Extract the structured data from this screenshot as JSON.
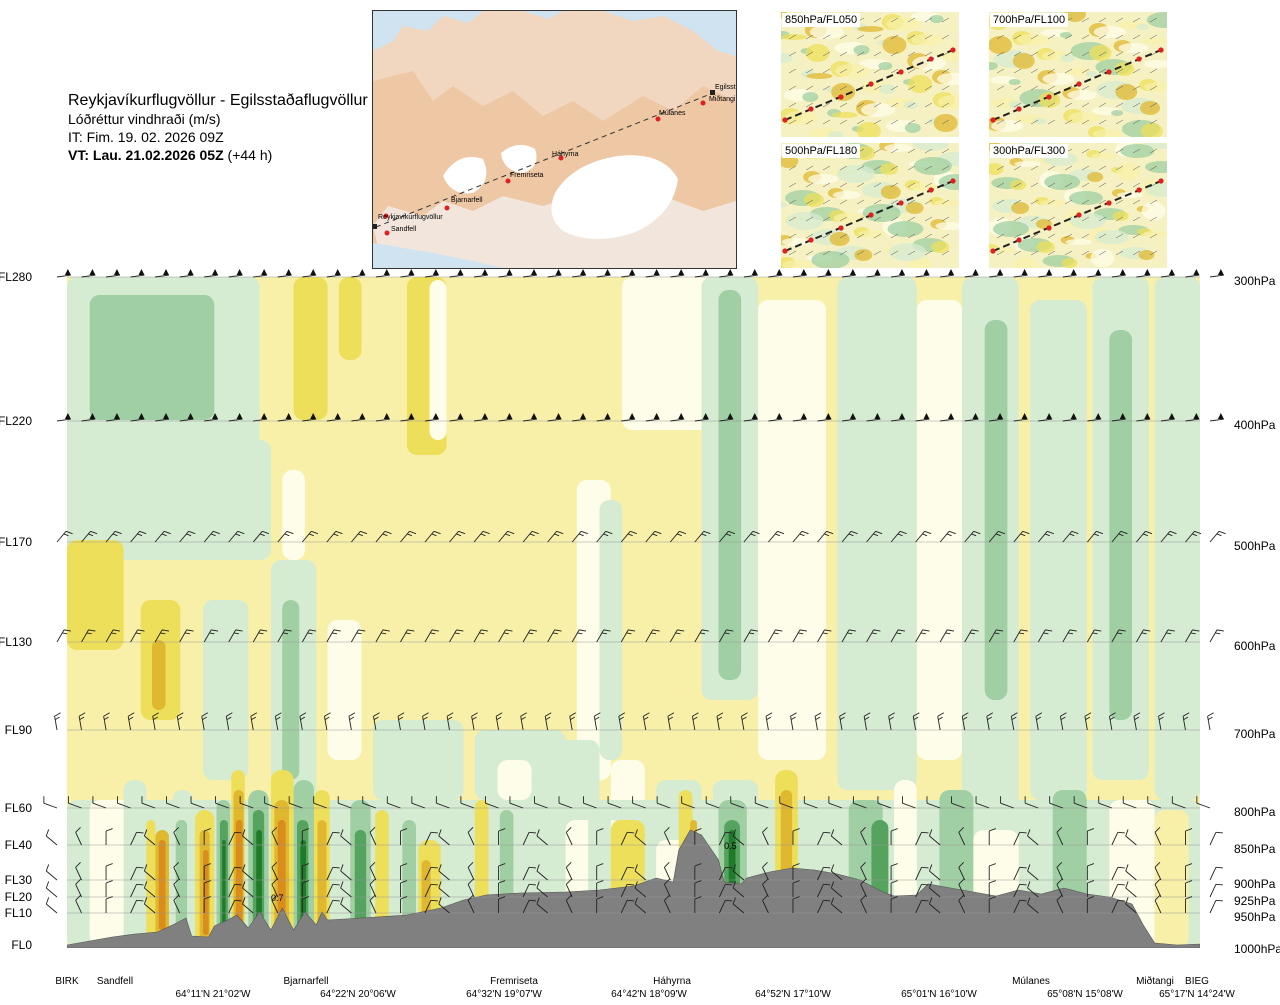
{
  "header": {
    "route": "Reykjavíkurflugvöllur - Egilsstaðaflugvöllur",
    "variable": "Lóðréttur vindhraði (m/s)",
    "issue_time": "IT: Fim. 19. 02. 2026 09Z",
    "valid_time": "VT: Lau. 21.02.2026 05Z",
    "lead_time": "(+44 h)"
  },
  "map": {
    "stations": [
      "Reykjavíkurflugvöllur",
      "Sandfell",
      "Bjarnarfell",
      "Fremriseta",
      "Háhyrna",
      "Múlanes",
      "Egilsst",
      "Miðtangi"
    ]
  },
  "insets": [
    {
      "label": "850hPa/FL050"
    },
    {
      "label": "700hPa/FL100"
    },
    {
      "label": "500hPa/FL180"
    },
    {
      "label": "300hPa/FL300"
    }
  ],
  "chart_data": {
    "type": "heatmap",
    "flight_levels": [
      {
        "fl": "FL280",
        "hpa": "300hPa"
      },
      {
        "fl": "FL220",
        "hpa": "400hPa"
      },
      {
        "fl": "FL170",
        "hpa": "500hPa"
      },
      {
        "fl": "FL130",
        "hpa": "600hPa"
      },
      {
        "fl": "FL90",
        "hpa": "700hPa"
      },
      {
        "fl": "FL60",
        "hpa": "800hPa"
      },
      {
        "fl": "FL40",
        "hpa": "850hPa"
      },
      {
        "fl": "FL30",
        "hpa": "900hPa"
      },
      {
        "fl": "FL20",
        "hpa": "925hPa"
      },
      {
        "fl": "FL10",
        "hpa": "950hPa"
      },
      {
        "fl": "FL0",
        "hpa": "1000hPa"
      }
    ],
    "waypoints": [
      "BIRK",
      "Sandfell",
      "Bjarnarfell",
      "Fremriseta",
      "Háhyrna",
      "Múlanes",
      "Miðtangi",
      "BIEG"
    ],
    "coordinates": [
      "64°11'N 21°02'W",
      "64°22'N 20°06'W",
      "64°32'N 19°07'W",
      "64°42'N 18°09'W",
      "64°52'N 17°10'W",
      "65°01'N 16°10'W",
      "65°08'N 15°08'W",
      "65°17'N 14°24'W"
    ],
    "annotations": [
      {
        "text": "0.7",
        "x_frac": 0.18,
        "fl": 20
      },
      {
        "text": "0.5",
        "x_frac": 0.58,
        "fl": 40
      }
    ],
    "colors": {
      "strong_up": "#1f7a2a",
      "up": "#55a35f",
      "weak_up": "#9fcfa3",
      "faint_up": "#d5ebd2",
      "neutral": "#fefde9",
      "faint_down": "#f8f0a8",
      "weak_down": "#eedf5a",
      "down": "#e0b830",
      "strong_down": "#d98d1c",
      "terrain": "#808080"
    }
  }
}
